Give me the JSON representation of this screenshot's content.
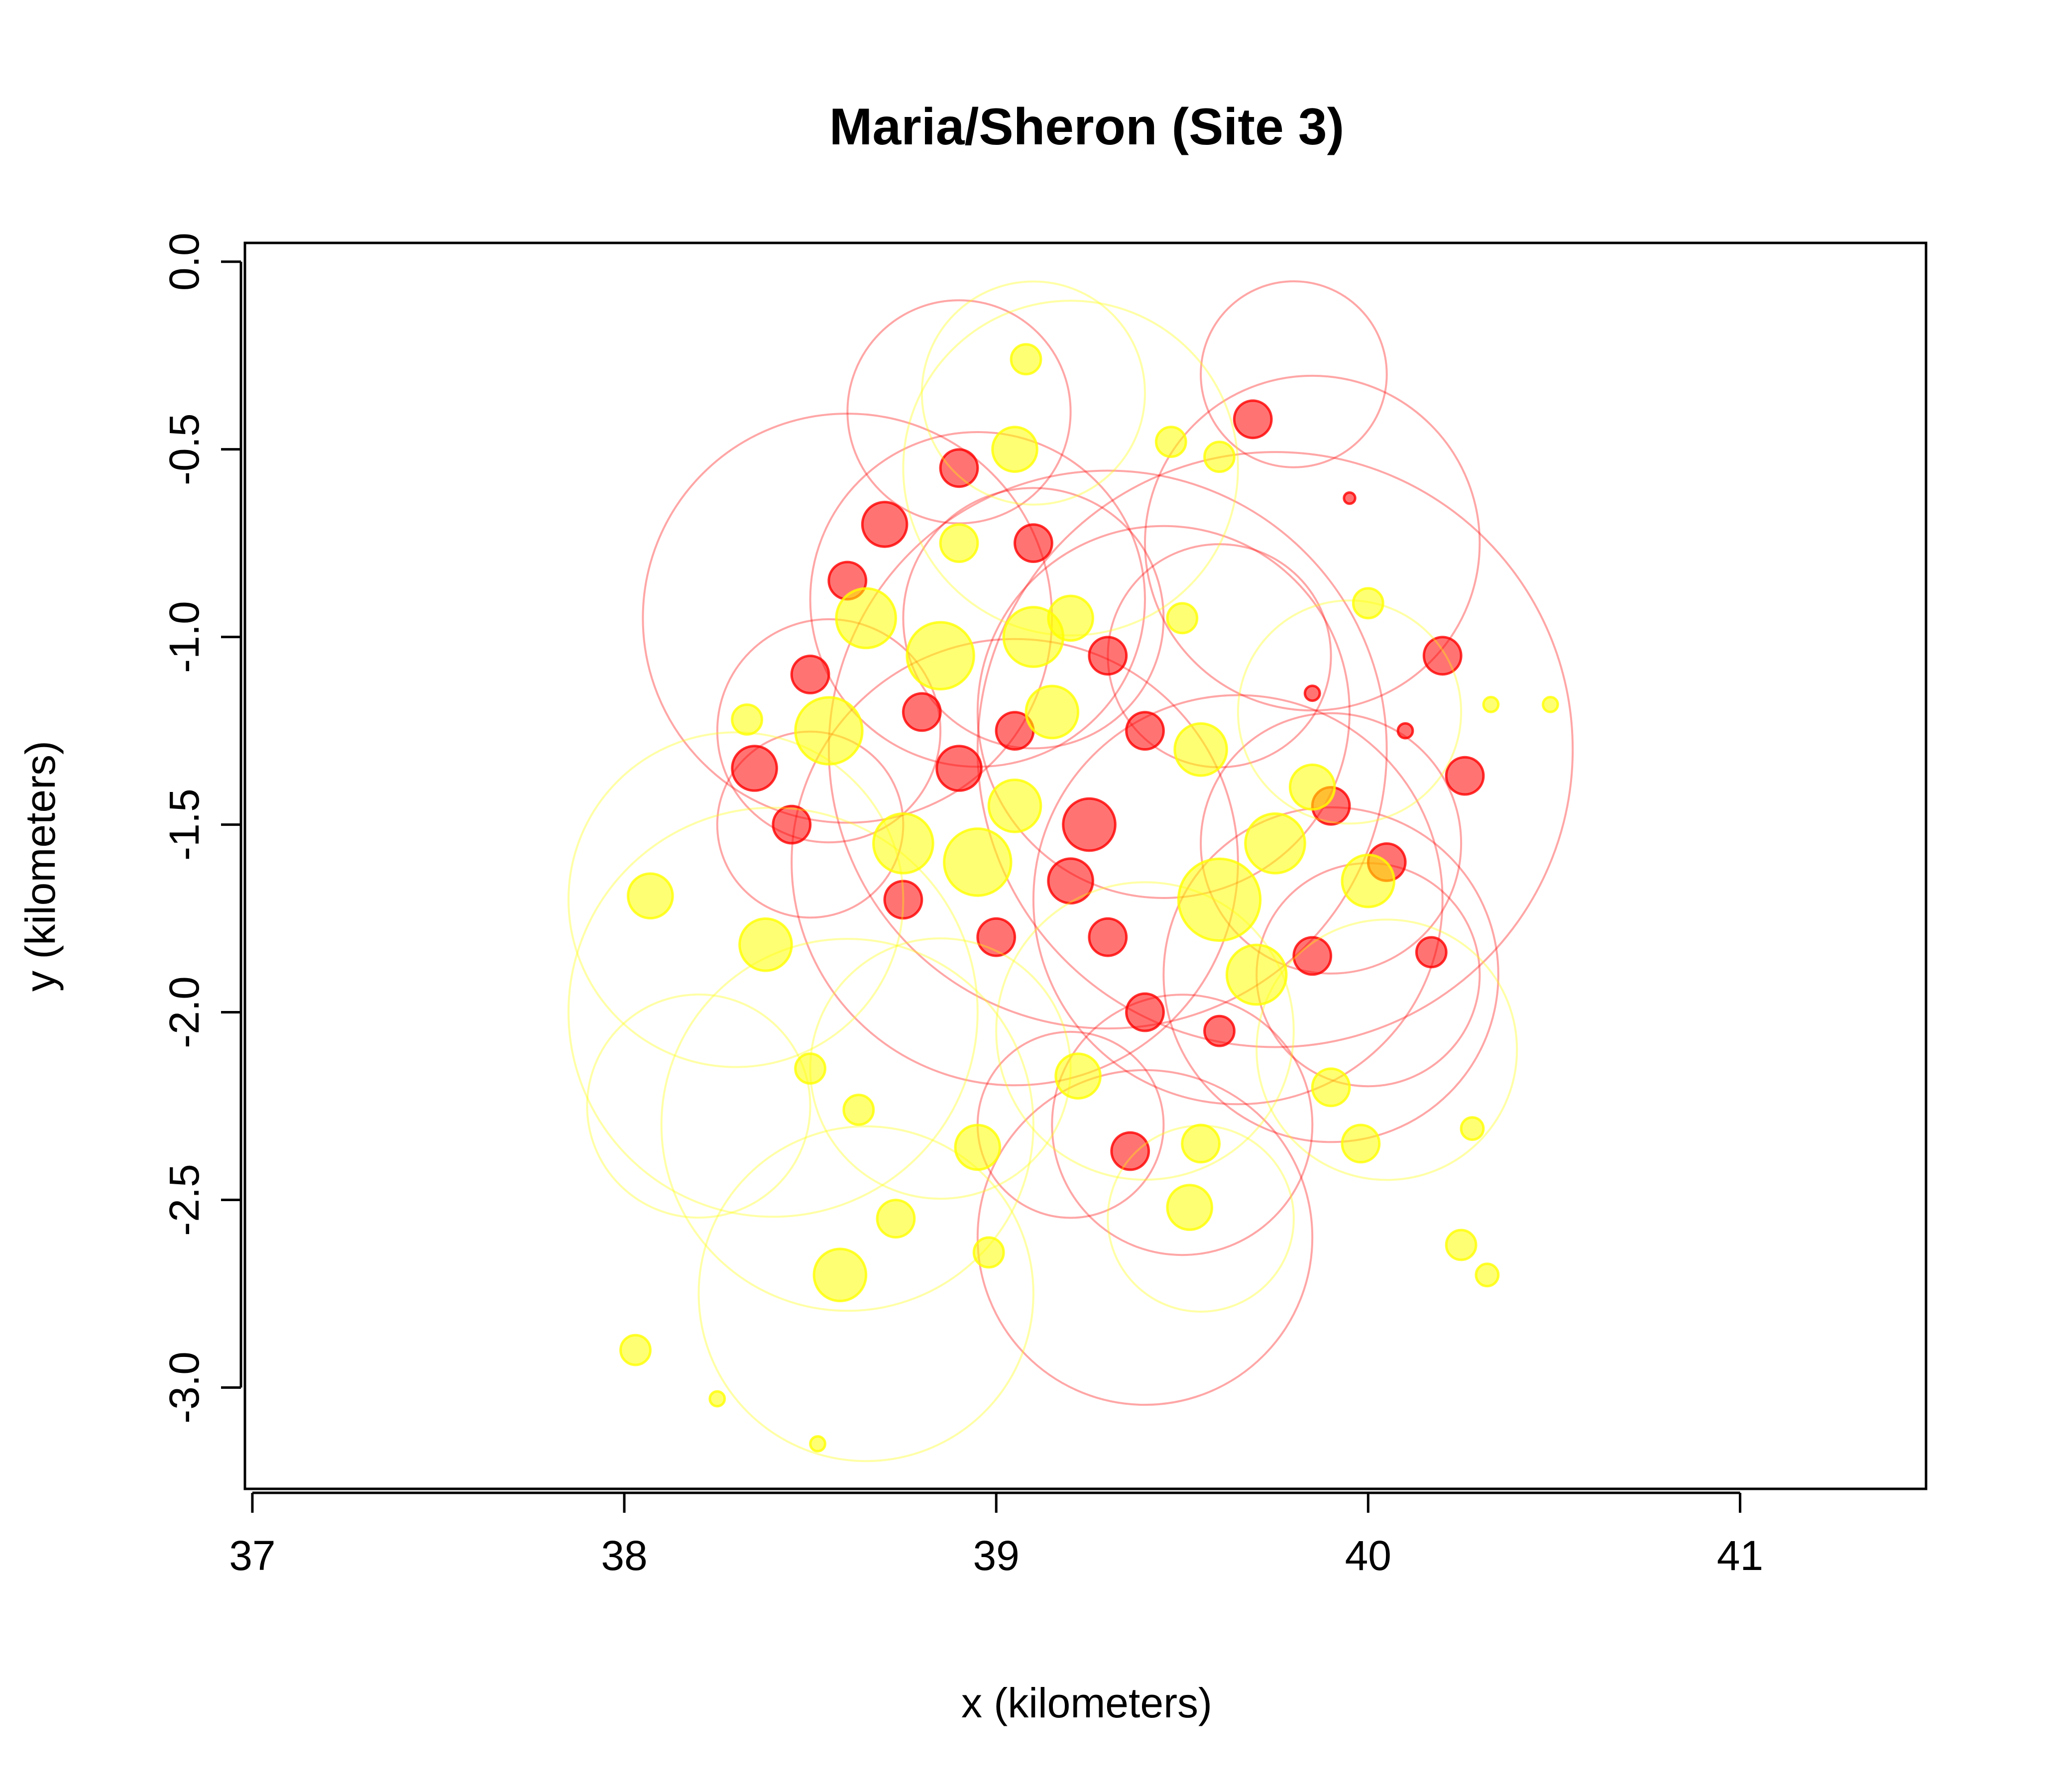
{
  "chart_data": {
    "type": "scatter",
    "title": "Maria/Sheron (Site 3)",
    "xlabel": "x (kilometers)",
    "ylabel": "y (kilometers)",
    "xlim": [
      36.98,
      41.5
    ],
    "ylim": [
      -3.27,
      0.05
    ],
    "xticks": [
      37,
      38,
      39,
      40,
      41
    ],
    "yticks": [
      0.0,
      -0.5,
      -1.0,
      -1.5,
      -2.0,
      -2.5,
      -3.0
    ],
    "grid": false,
    "legend": "none",
    "marker": "open circles, radius proportional to a value",
    "colors": {
      "red_series": "#ff0000",
      "yellow_series": "#ffff00"
    },
    "series": [
      {
        "color": "#ff0000",
        "points": [
          {
            "x": 38.6,
            "y": -0.85,
            "r": 0.05
          },
          {
            "x": 38.7,
            "y": -0.7,
            "r": 0.06
          },
          {
            "x": 38.5,
            "y": -1.1,
            "r": 0.05
          },
          {
            "x": 38.35,
            "y": -1.35,
            "r": 0.06
          },
          {
            "x": 38.45,
            "y": -1.5,
            "r": 0.05
          },
          {
            "x": 38.8,
            "y": -1.2,
            "r": 0.05
          },
          {
            "x": 38.9,
            "y": -1.35,
            "r": 0.06
          },
          {
            "x": 39.05,
            "y": -1.25,
            "r": 0.05
          },
          {
            "x": 39.25,
            "y": -1.5,
            "r": 0.07
          },
          {
            "x": 39.2,
            "y": -1.65,
            "r": 0.06
          },
          {
            "x": 39.3,
            "y": -1.8,
            "r": 0.05
          },
          {
            "x": 39.4,
            "y": -2.0,
            "r": 0.05
          },
          {
            "x": 39.0,
            "y": -1.8,
            "r": 0.05
          },
          {
            "x": 38.75,
            "y": -1.7,
            "r": 0.05
          },
          {
            "x": 38.9,
            "y": -0.55,
            "r": 0.05
          },
          {
            "x": 39.1,
            "y": -0.75,
            "r": 0.05
          },
          {
            "x": 39.3,
            "y": -1.05,
            "r": 0.05
          },
          {
            "x": 39.4,
            "y": -1.25,
            "r": 0.05
          },
          {
            "x": 39.9,
            "y": -1.45,
            "r": 0.05
          },
          {
            "x": 40.05,
            "y": -1.6,
            "r": 0.05
          },
          {
            "x": 39.85,
            "y": -1.85,
            "r": 0.05
          },
          {
            "x": 39.6,
            "y": -2.05,
            "r": 0.04
          },
          {
            "x": 39.69,
            "y": -0.42,
            "r": 0.05
          },
          {
            "x": 40.2,
            "y": -1.05,
            "r": 0.05
          },
          {
            "x": 40.26,
            "y": -1.37,
            "r": 0.05
          },
          {
            "x": 40.17,
            "y": -1.84,
            "r": 0.04
          },
          {
            "x": 39.36,
            "y": -2.37,
            "r": 0.05
          },
          {
            "x": 39.85,
            "y": -1.15,
            "r": 0.02
          },
          {
            "x": 40.1,
            "y": -1.25,
            "r": 0.02
          },
          {
            "x": 39.95,
            "y": -0.63,
            "r": 0.015
          },
          {
            "x": 38.55,
            "y": -1.25,
            "r": 0.3
          },
          {
            "x": 38.6,
            "y": -0.95,
            "r": 0.55
          },
          {
            "x": 38.95,
            "y": -0.9,
            "r": 0.45
          },
          {
            "x": 39.05,
            "y": -1.6,
            "r": 0.6
          },
          {
            "x": 39.3,
            "y": -1.3,
            "r": 0.75
          },
          {
            "x": 39.45,
            "y": -1.2,
            "r": 0.5
          },
          {
            "x": 39.65,
            "y": -1.7,
            "r": 0.55
          },
          {
            "x": 39.75,
            "y": -1.3,
            "r": 0.8
          },
          {
            "x": 39.85,
            "y": -0.75,
            "r": 0.45
          },
          {
            "x": 39.9,
            "y": -1.9,
            "r": 0.45
          },
          {
            "x": 39.4,
            "y": -2.6,
            "r": 0.45
          },
          {
            "x": 39.5,
            "y": -2.3,
            "r": 0.35
          },
          {
            "x": 39.9,
            "y": -1.55,
            "r": 0.35
          },
          {
            "x": 38.9,
            "y": -0.4,
            "r": 0.3
          },
          {
            "x": 39.8,
            "y": -0.3,
            "r": 0.25
          },
          {
            "x": 40.0,
            "y": -1.9,
            "r": 0.3
          },
          {
            "x": 39.2,
            "y": -2.3,
            "r": 0.25
          },
          {
            "x": 38.5,
            "y": -1.5,
            "r": 0.25
          },
          {
            "x": 39.1,
            "y": -0.95,
            "r": 0.35
          },
          {
            "x": 39.6,
            "y": -1.05,
            "r": 0.3
          }
        ]
      },
      {
        "color": "#ffff00",
        "points": [
          {
            "x": 38.65,
            "y": -0.95,
            "r": 0.08
          },
          {
            "x": 38.55,
            "y": -1.25,
            "r": 0.09
          },
          {
            "x": 38.85,
            "y": -1.05,
            "r": 0.09
          },
          {
            "x": 39.1,
            "y": -1.0,
            "r": 0.08
          },
          {
            "x": 38.95,
            "y": -1.6,
            "r": 0.09
          },
          {
            "x": 38.75,
            "y": -1.55,
            "r": 0.08
          },
          {
            "x": 39.05,
            "y": -1.45,
            "r": 0.07
          },
          {
            "x": 39.15,
            "y": -1.2,
            "r": 0.07
          },
          {
            "x": 39.55,
            "y": -1.3,
            "r": 0.07
          },
          {
            "x": 39.6,
            "y": -1.7,
            "r": 0.11
          },
          {
            "x": 39.75,
            "y": -1.55,
            "r": 0.08
          },
          {
            "x": 39.7,
            "y": -1.9,
            "r": 0.08
          },
          {
            "x": 40.0,
            "y": -1.65,
            "r": 0.07
          },
          {
            "x": 39.85,
            "y": -1.4,
            "r": 0.06
          },
          {
            "x": 39.05,
            "y": -0.5,
            "r": 0.06
          },
          {
            "x": 38.9,
            "y": -0.75,
            "r": 0.05
          },
          {
            "x": 39.2,
            "y": -0.95,
            "r": 0.06
          },
          {
            "x": 39.5,
            "y": -0.95,
            "r": 0.04
          },
          {
            "x": 38.07,
            "y": -1.69,
            "r": 0.06
          },
          {
            "x": 38.38,
            "y": -1.82,
            "r": 0.07
          },
          {
            "x": 38.33,
            "y": -1.22,
            "r": 0.04
          },
          {
            "x": 38.5,
            "y": -2.15,
            "r": 0.04
          },
          {
            "x": 38.63,
            "y": -2.26,
            "r": 0.04
          },
          {
            "x": 38.58,
            "y": -2.7,
            "r": 0.07
          },
          {
            "x": 38.73,
            "y": -2.55,
            "r": 0.05
          },
          {
            "x": 38.98,
            "y": -2.64,
            "r": 0.04
          },
          {
            "x": 38.95,
            "y": -2.36,
            "r": 0.06
          },
          {
            "x": 39.22,
            "y": -2.17,
            "r": 0.06
          },
          {
            "x": 39.52,
            "y": -2.52,
            "r": 0.06
          },
          {
            "x": 39.55,
            "y": -2.35,
            "r": 0.05
          },
          {
            "x": 39.98,
            "y": -2.35,
            "r": 0.05
          },
          {
            "x": 40.0,
            "y": -0.91,
            "r": 0.04
          },
          {
            "x": 39.6,
            "y": -0.52,
            "r": 0.04
          },
          {
            "x": 39.47,
            "y": -0.48,
            "r": 0.04
          },
          {
            "x": 39.08,
            "y": -0.26,
            "r": 0.04
          },
          {
            "x": 39.9,
            "y": -2.2,
            "r": 0.05
          },
          {
            "x": 40.28,
            "y": -2.31,
            "r": 0.03
          },
          {
            "x": 40.49,
            "y": -1.18,
            "r": 0.02
          },
          {
            "x": 40.33,
            "y": -1.18,
            "r": 0.02
          },
          {
            "x": 38.03,
            "y": -2.9,
            "r": 0.04
          },
          {
            "x": 38.25,
            "y": -3.03,
            "r": 0.02
          },
          {
            "x": 38.52,
            "y": -3.15,
            "r": 0.02
          },
          {
            "x": 40.32,
            "y": -2.7,
            "r": 0.03
          },
          {
            "x": 40.25,
            "y": -2.62,
            "r": 0.04
          },
          {
            "x": 38.3,
            "y": -1.7,
            "r": 0.45
          },
          {
            "x": 38.4,
            "y": -2.0,
            "r": 0.55
          },
          {
            "x": 38.6,
            "y": -2.3,
            "r": 0.5
          },
          {
            "x": 38.65,
            "y": -2.75,
            "r": 0.45
          },
          {
            "x": 39.1,
            "y": -0.35,
            "r": 0.3
          },
          {
            "x": 39.2,
            "y": -0.55,
            "r": 0.45
          },
          {
            "x": 39.4,
            "y": -2.05,
            "r": 0.4
          },
          {
            "x": 40.05,
            "y": -2.1,
            "r": 0.35
          },
          {
            "x": 39.95,
            "y": -1.2,
            "r": 0.3
          },
          {
            "x": 38.85,
            "y": -2.15,
            "r": 0.35
          },
          {
            "x": 39.55,
            "y": -2.55,
            "r": 0.25
          },
          {
            "x": 38.2,
            "y": -2.25,
            "r": 0.3
          }
        ]
      }
    ]
  }
}
